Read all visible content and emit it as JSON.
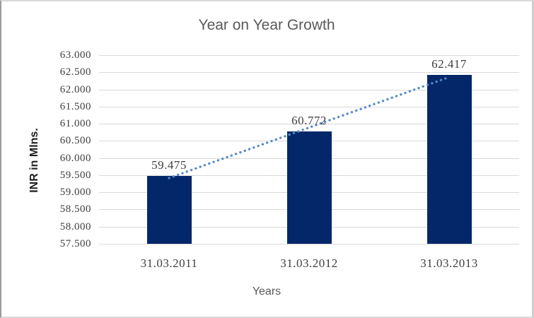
{
  "chart_data": {
    "type": "bar",
    "title": "Year on Year Growth",
    "xlabel": "Years",
    "ylabel": "INR in Mlns.",
    "categories": [
      "31.03.2011",
      "31.03.2012",
      "31.03.2013"
    ],
    "values": [
      59.475,
      60.772,
      62.417
    ],
    "data_labels": [
      "59.475",
      "60.772",
      "62.417"
    ],
    "ylim": [
      57.5,
      63.0
    ],
    "ytick_step": 0.5,
    "ytick_labels": [
      "63.000",
      "62.500",
      "62.000",
      "61.500",
      "61.000",
      "60.500",
      "60.000",
      "59.500",
      "59.000",
      "58.500",
      "58.000",
      "57.500"
    ],
    "grid": true,
    "legend": "none",
    "trendline": {
      "style": "dotted",
      "fit": "linear"
    },
    "colors": {
      "bar": "#042769",
      "trendline": "#5389cb",
      "gridline": "#d9d9d9",
      "title": "#595959",
      "x_axis_title": "#595959",
      "y_axis_title": "#1f1f1f",
      "tick_label": "#3f3f3f",
      "data_label": "#3f3f3f"
    }
  }
}
